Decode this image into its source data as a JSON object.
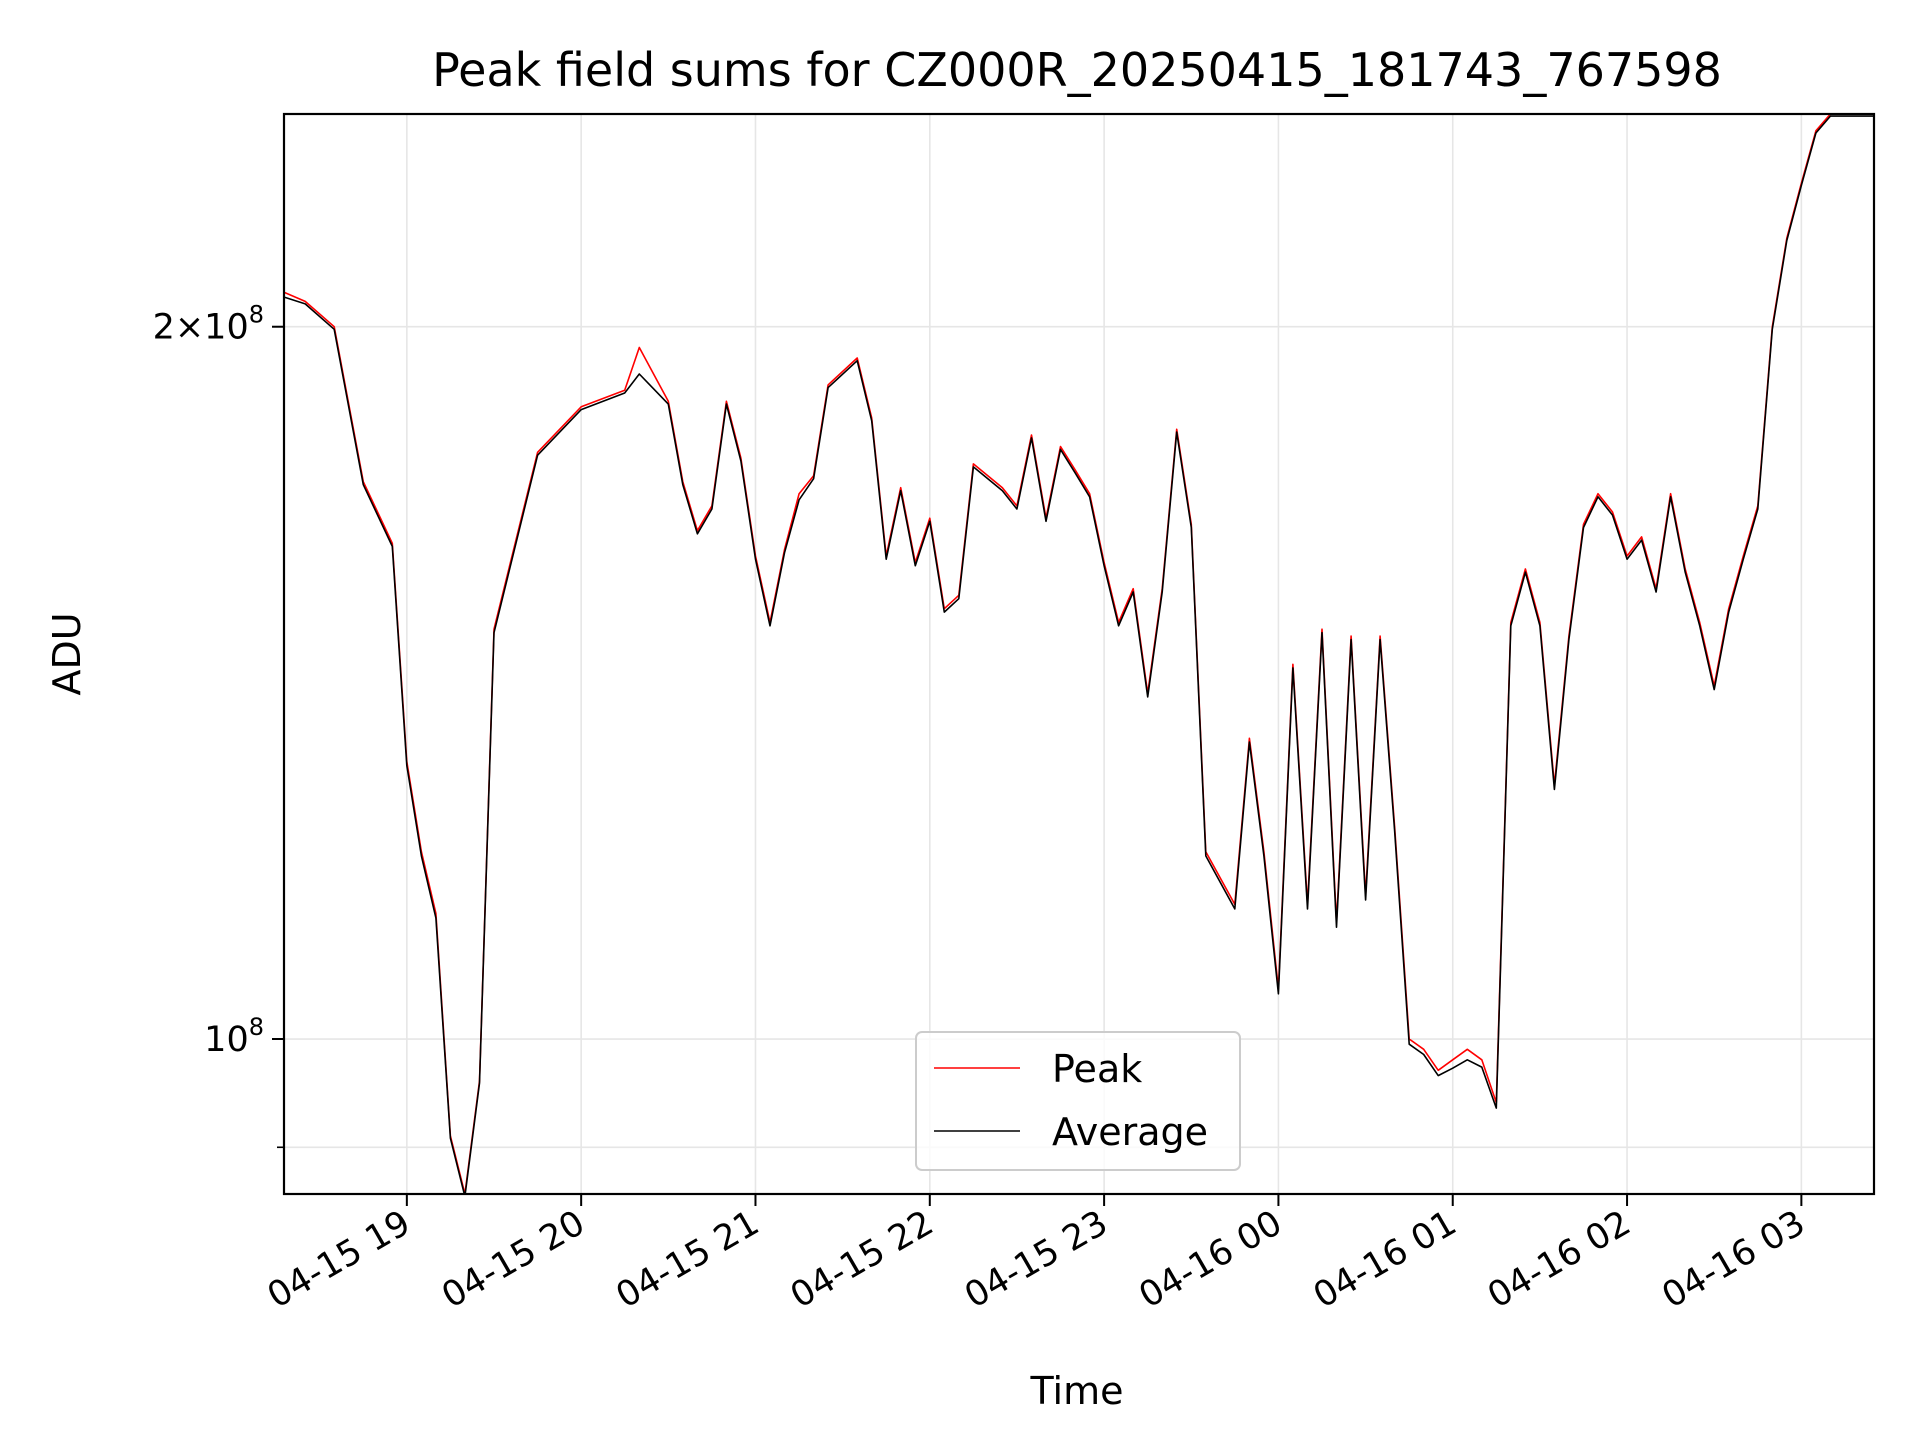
{
  "chart_data": {
    "type": "line",
    "title": "Peak field sums for CZ000R_20250415_181743_767598",
    "xlabel": "Time",
    "ylabel": "ADU",
    "yscale": "log",
    "ylim": [
      86000000,
      246000000
    ],
    "xlim": [
      "2025-04-15 18:17:43",
      "2025-04-16 03:25:00"
    ],
    "grid": true,
    "legend_position": "bottom-center",
    "x_ticks": [
      "04-15 19",
      "04-15 20",
      "04-15 21",
      "04-15 22",
      "04-15 23",
      "04-16 00",
      "04-16 01",
      "04-16 02",
      "04-16 03"
    ],
    "x_tick_times": [
      "2025-04-15 19:00",
      "2025-04-15 20:00",
      "2025-04-15 21:00",
      "2025-04-15 22:00",
      "2025-04-15 23:00",
      "2025-04-16 00:00",
      "2025-04-16 01:00",
      "2025-04-16 02:00",
      "2025-04-16 03:00"
    ],
    "y_ticks": [
      {
        "value": 200000000,
        "base": "2×10",
        "exp": "8"
      },
      {
        "value": 100000000,
        "base": "10",
        "exp": "8"
      }
    ],
    "y_minor_ticks": [
      90000000
    ],
    "x": [
      "2025-04-15 18:17",
      "2025-04-15 18:25",
      "2025-04-15 18:35",
      "2025-04-15 18:45",
      "2025-04-15 18:55",
      "2025-04-15 19:00",
      "2025-04-15 19:05",
      "2025-04-15 19:10",
      "2025-04-15 19:15",
      "2025-04-15 19:20",
      "2025-04-15 19:25",
      "2025-04-15 19:30",
      "2025-04-15 19:45",
      "2025-04-15 20:00",
      "2025-04-15 20:15",
      "2025-04-15 20:20",
      "2025-04-15 20:30",
      "2025-04-15 20:35",
      "2025-04-15 20:40",
      "2025-04-15 20:45",
      "2025-04-15 20:50",
      "2025-04-15 20:55",
      "2025-04-15 21:00",
      "2025-04-15 21:05",
      "2025-04-15 21:10",
      "2025-04-15 21:15",
      "2025-04-15 21:20",
      "2025-04-15 21:25",
      "2025-04-15 21:35",
      "2025-04-15 21:40",
      "2025-04-15 21:45",
      "2025-04-15 21:50",
      "2025-04-15 21:55",
      "2025-04-15 22:00",
      "2025-04-15 22:05",
      "2025-04-15 22:10",
      "2025-04-15 22:15",
      "2025-04-15 22:25",
      "2025-04-15 22:30",
      "2025-04-15 22:35",
      "2025-04-15 22:40",
      "2025-04-15 22:45",
      "2025-04-15 22:50",
      "2025-04-15 22:55",
      "2025-04-15 23:00",
      "2025-04-15 23:05",
      "2025-04-15 23:10",
      "2025-04-15 23:15",
      "2025-04-15 23:20",
      "2025-04-15 23:25",
      "2025-04-15 23:30",
      "2025-04-15 23:35",
      "2025-04-15 23:45",
      "2025-04-15 23:50",
      "2025-04-15 23:55",
      "2025-04-16 00:00",
      "2025-04-16 00:05",
      "2025-04-16 00:10",
      "2025-04-16 00:15",
      "2025-04-16 00:20",
      "2025-04-16 00:25",
      "2025-04-16 00:30",
      "2025-04-16 00:35",
      "2025-04-16 00:40",
      "2025-04-16 00:45",
      "2025-04-16 00:50",
      "2025-04-16 00:55",
      "2025-04-16 01:00",
      "2025-04-16 01:05",
      "2025-04-16 01:10",
      "2025-04-16 01:15",
      "2025-04-16 01:20",
      "2025-04-16 01:25",
      "2025-04-16 01:30",
      "2025-04-16 01:35",
      "2025-04-16 01:40",
      "2025-04-16 01:45",
      "2025-04-16 01:50",
      "2025-04-16 01:55",
      "2025-04-16 02:00",
      "2025-04-16 02:05",
      "2025-04-16 02:10",
      "2025-04-16 02:15",
      "2025-04-16 02:20",
      "2025-04-16 02:25",
      "2025-04-16 02:30",
      "2025-04-16 02:35",
      "2025-04-16 02:40",
      "2025-04-16 02:45",
      "2025-04-16 02:50",
      "2025-04-16 02:55",
      "2025-04-16 03:00",
      "2025-04-16 03:05",
      "2025-04-16 03:10",
      "2025-04-16 03:15",
      "2025-04-16 03:20",
      "2025-04-16 03:25"
    ],
    "series": [
      {
        "name": "Peak",
        "color": "#ff0000",
        "values": [
          207000000,
          205000000,
          200000000,
          172000000,
          162000000,
          131000000,
          120000000,
          113000000,
          91000000,
          86000000,
          96000000,
          149000000,
          177000000,
          185000000,
          188000000,
          196000000,
          186000000,
          172000000,
          164000000,
          168000000,
          186000000,
          176000000,
          160000000,
          150000000,
          161000000,
          170000000,
          173000000,
          189000000,
          194000000,
          183000000,
          160000000,
          171000000,
          159000000,
          166000000,
          152000000,
          154000000,
          175000000,
          171000000,
          168000000,
          180000000,
          166000000,
          178000000,
          174000000,
          170000000,
          159000000,
          150000000,
          155000000,
          140000000,
          155000000,
          181000000,
          165000000,
          120000000,
          114000000,
          134000000,
          120000000,
          105000000,
          144000000,
          114000000,
          149000000,
          112000000,
          148000000,
          115000000,
          148000000,
          123000000,
          100000000,
          99000000,
          97000000,
          98000000,
          99000000,
          98000000,
          94000000,
          150000000,
          158000000,
          150000000,
          128000000,
          148000000,
          165000000,
          170000000,
          167000000,
          160000000,
          163000000,
          155000000,
          170000000,
          158000000,
          150000000,
          141000000,
          152000000,
          160000000,
          168000000,
          200000000,
          218000000,
          230000000,
          242000000,
          246000000,
          246000000,
          246000000,
          246000000
        ]
      },
      {
        "name": "Average",
        "color": "#000000",
        "values": [
          206000000,
          204500000,
          199500000,
          171500000,
          161500000,
          130500000,
          119500000,
          112500000,
          90800000,
          85800000,
          95800000,
          148500000,
          176500000,
          184500000,
          187500000,
          191000000,
          185500000,
          171500000,
          163500000,
          167500000,
          185500000,
          175500000,
          159500000,
          149500000,
          160500000,
          169000000,
          172500000,
          188500000,
          193500000,
          182500000,
          159500000,
          170500000,
          158500000,
          165500000,
          151500000,
          153500000,
          174500000,
          170500000,
          167500000,
          179500000,
          165500000,
          177500000,
          173500000,
          169500000,
          158500000,
          149500000,
          154500000,
          139500000,
          154500000,
          180500000,
          164500000,
          119500000,
          113500000,
          133500000,
          119500000,
          104500000,
          143500000,
          113500000,
          148500000,
          111500000,
          147500000,
          114500000,
          147500000,
          122500000,
          99500000,
          98500000,
          96500000,
          97200000,
          98000000,
          97300000,
          93500000,
          149500000,
          157500000,
          149500000,
          127500000,
          147500000,
          164500000,
          169500000,
          166500000,
          159500000,
          162500000,
          154500000,
          169500000,
          157500000,
          149500000,
          140500000,
          151500000,
          159500000,
          167500000,
          199500000,
          217500000,
          229500000,
          241500000,
          245500000,
          245500000,
          245500000,
          245500000
        ]
      }
    ]
  }
}
